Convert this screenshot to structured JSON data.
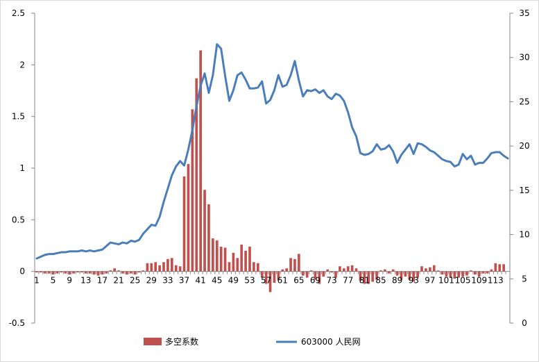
{
  "chart_data": {
    "type": "bar+line",
    "title": "",
    "xlabel": "",
    "ylabel_left": "",
    "ylabel_right": "",
    "x_range": [
      1,
      116
    ],
    "x_tick_labels": [
      "1",
      "5",
      "9",
      "13",
      "17",
      "21",
      "25",
      "29",
      "33",
      "37",
      "41",
      "45",
      "49",
      "53",
      "57",
      "61",
      "65",
      "69",
      "73",
      "77",
      "81",
      "85",
      "89",
      "93",
      "97",
      "101",
      "105",
      "109",
      "113"
    ],
    "y_left": {
      "range": [
        -0.5,
        2.5
      ],
      "ticks": [
        "-0.5",
        "0",
        "0.5",
        "1",
        "1.5",
        "2",
        "2.5"
      ]
    },
    "y_right": {
      "range": [
        0,
        35
      ],
      "ticks": [
        "0",
        "5",
        "10",
        "15",
        "20",
        "25",
        "30",
        "35"
      ]
    },
    "grid": false,
    "legend_position": "bottom",
    "series": [
      {
        "name": "多空系数",
        "type": "bar",
        "axis": "left",
        "color": "#c0504d",
        "values": [
          -0.01,
          -0.01,
          -0.02,
          -0.02,
          -0.03,
          -0.02,
          -0.01,
          -0.02,
          -0.03,
          -0.02,
          -0.01,
          -0.01,
          -0.02,
          -0.02,
          -0.03,
          -0.04,
          -0.03,
          -0.02,
          0.01,
          0.03,
          0.01,
          -0.02,
          -0.03,
          -0.02,
          -0.03,
          -0.01,
          0.01,
          0.08,
          0.08,
          0.09,
          0.06,
          0.09,
          0.12,
          0.13,
          0.06,
          0.05,
          0.92,
          1.04,
          1.57,
          1.87,
          2.14,
          0.79,
          0.65,
          0.32,
          0.3,
          0.24,
          0.23,
          0.09,
          0.18,
          0.13,
          0.26,
          0.2,
          0.24,
          0.09,
          0.08,
          -0.06,
          -0.12,
          -0.2,
          -0.11,
          -0.08,
          0.02,
          0.03,
          0.13,
          0.12,
          0.17,
          -0.04,
          -0.06,
          0.01,
          -0.08,
          -0.12,
          -0.05,
          0.02,
          -0.01,
          -0.06,
          0.05,
          0.03,
          0.05,
          0.06,
          0.03,
          -0.09,
          -0.12,
          -0.12,
          -0.1,
          -0.08,
          0.01,
          0.02,
          -0.02,
          0.02,
          -0.04,
          -0.08,
          -0.05,
          -0.08,
          -0.1,
          -0.06,
          0.05,
          0.03,
          0.04,
          0.06,
          0.01,
          -0.03,
          -0.05,
          -0.06,
          -0.07,
          -0.06,
          -0.05,
          -0.04,
          0.01,
          -0.03,
          -0.05,
          -0.02,
          -0.02,
          0.02,
          0.08,
          0.07,
          0.07,
          0.0
        ]
      },
      {
        "name": "603000 人民网",
        "type": "line",
        "axis": "right",
        "color": "#4a7ebb",
        "values": [
          7.3,
          7.5,
          7.7,
          7.8,
          7.8,
          7.9,
          8.0,
          8.0,
          8.1,
          8.1,
          8.1,
          8.2,
          8.1,
          8.2,
          8.1,
          8.2,
          8.3,
          8.7,
          9.1,
          9.0,
          8.9,
          9.1,
          9.0,
          9.3,
          9.2,
          9.4,
          10.1,
          10.6,
          11.1,
          11.0,
          12.0,
          13.7,
          15.2,
          16.7,
          17.7,
          18.3,
          17.8,
          19.6,
          21.8,
          24.5,
          26.8,
          28.2,
          26.0,
          28.0,
          31.5,
          31.0,
          27.9,
          25.1,
          26.3,
          28.0,
          28.3,
          27.5,
          26.5,
          26.5,
          26.6,
          27.3,
          24.8,
          25.2,
          26.3,
          28.0,
          26.7,
          26.9,
          28.0,
          29.6,
          27.4,
          25.6,
          26.3,
          26.2,
          26.4,
          26.0,
          26.3,
          25.6,
          25.3,
          25.9,
          25.7,
          25.1,
          23.8,
          22.1,
          21.1,
          19.2,
          19.0,
          19.1,
          19.4,
          20.2,
          19.6,
          19.7,
          20.1,
          19.4,
          18.1,
          19.0,
          19.6,
          20.2,
          19.1,
          20.3,
          20.2,
          19.9,
          19.5,
          19.3,
          18.9,
          18.5,
          18.3,
          18.2,
          17.7,
          17.9,
          19.1,
          18.5,
          18.9,
          17.9,
          18.1,
          18.1,
          18.6,
          19.2,
          19.3,
          19.3,
          18.9,
          18.6
        ]
      }
    ]
  }
}
